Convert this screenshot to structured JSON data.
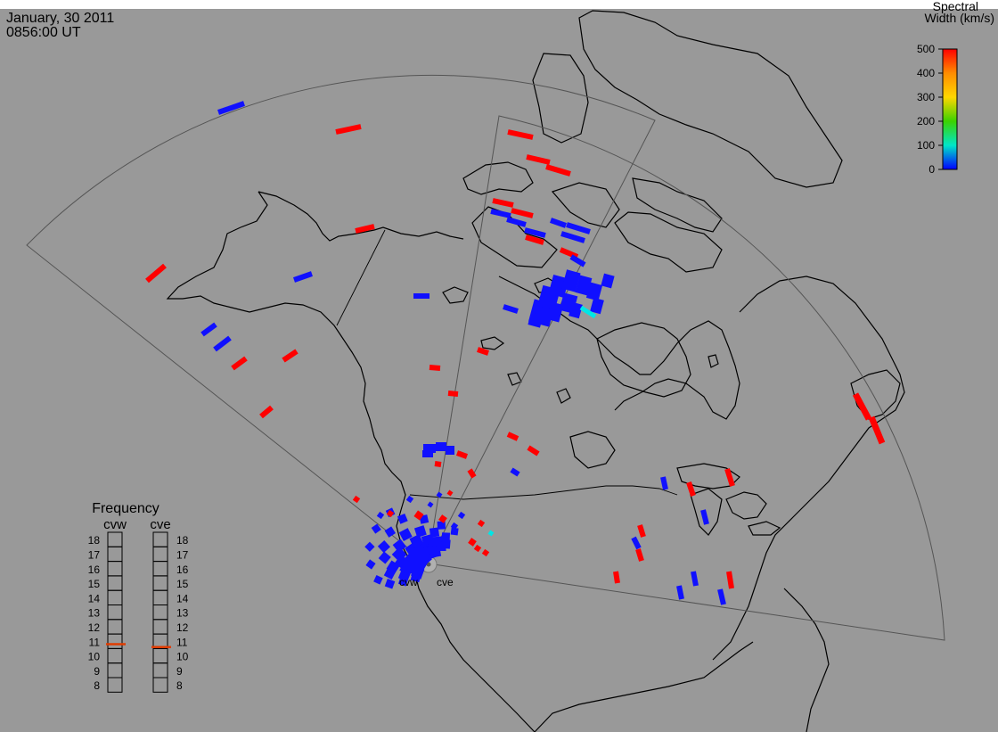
{
  "header": {
    "date": "January, 30 2011",
    "time": "0856:00 UT"
  },
  "colorbar": {
    "title_line1": "Spectral",
    "title_line2": "Width (km/s)",
    "ticks": [
      "500",
      "400",
      "300",
      "200",
      "100",
      "0"
    ],
    "min": 0,
    "max": 500,
    "gradient": [
      "#ff0000",
      "#ff8c00",
      "#ffd700",
      "#3cd200",
      "#00e6c8",
      "#0000ff"
    ]
  },
  "frequency_panel": {
    "title": "Frequency",
    "radars": [
      "cvw",
      "cve"
    ],
    "scale_labels": [
      "18",
      "17",
      "16",
      "15",
      "14",
      "13",
      "12",
      "11",
      "10",
      "9",
      "8"
    ],
    "scale_min_mhz": 8,
    "scale_max_mhz": 18,
    "current_mhz": {
      "cvw": 10.8,
      "cve": 10.6
    },
    "marker_color": "#e03c00"
  },
  "radar_labels": {
    "west": "cvw",
    "east": "cve"
  },
  "colors": {
    "background": "#999999",
    "frame": "#ffffff",
    "coastline": "#000000",
    "fov": "#555555",
    "low_width": "#1010ff",
    "high_width": "#ff0000",
    "mid_width": "#00e6e6"
  }
}
